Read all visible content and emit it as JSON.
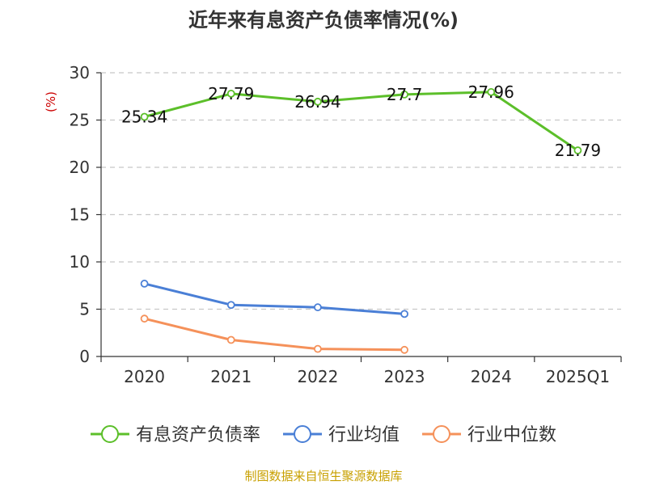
{
  "chart_data": {
    "type": "line",
    "title": "近年来有息资产负债率情况(%)",
    "unit_label": "(%)",
    "categories": [
      "2020",
      "2021",
      "2022",
      "2023",
      "2024",
      "2025Q1"
    ],
    "ylim": [
      0,
      30
    ],
    "yticks": [
      0,
      5,
      10,
      15,
      20,
      25,
      30
    ],
    "grid": true,
    "legend_position": "bottom",
    "series": [
      {
        "name": "有息资产负债率",
        "color": "#5cbf2a",
        "values": [
          25.34,
          27.79,
          26.94,
          27.7,
          27.96,
          21.79
        ],
        "labels": [
          "25.34",
          "27.79",
          "26.94",
          "27.7",
          "27.96",
          "21.79"
        ]
      },
      {
        "name": "行业均值",
        "color": "#4a7fd6",
        "values": [
          7.7,
          5.45,
          5.2,
          4.5,
          null,
          null
        ]
      },
      {
        "name": "行业中位数",
        "color": "#f5915a",
        "values": [
          4.0,
          1.75,
          0.8,
          0.7,
          null,
          null
        ]
      }
    ]
  },
  "source": "制图数据来自恒生聚源数据库"
}
